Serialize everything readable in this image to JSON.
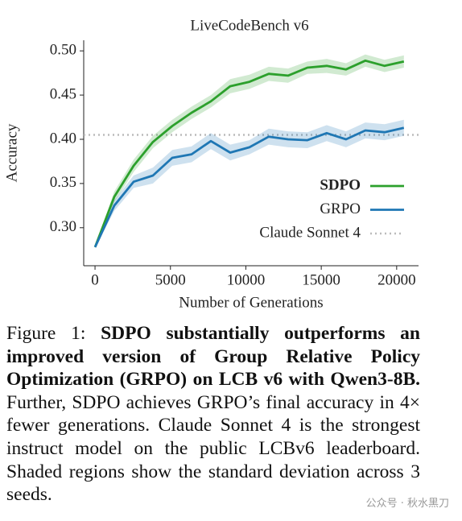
{
  "chart_data": {
    "type": "line",
    "title": "LiveCodeBench v6",
    "x_label": "Number of Generations",
    "y_label": "Accuracy",
    "x": [
      0,
      1280,
      2560,
      3840,
      5120,
      6400,
      7680,
      8960,
      10240,
      11520,
      12800,
      14080,
      15360,
      16640,
      17920,
      19200,
      20480
    ],
    "series": [
      {
        "name": "SDPO",
        "color": "#2ca02c",
        "values": [
          0.278,
          0.335,
          0.37,
          0.397,
          0.415,
          0.43,
          0.443,
          0.46,
          0.465,
          0.474,
          0.472,
          0.481,
          0.483,
          0.479,
          0.489,
          0.483,
          0.488
        ],
        "std": [
          0.001,
          0.006,
          0.007,
          0.007,
          0.007,
          0.007,
          0.007,
          0.008,
          0.008,
          0.008,
          0.008,
          0.007,
          0.008,
          0.007,
          0.007,
          0.007,
          0.007
        ]
      },
      {
        "name": "GRPO",
        "color": "#1f77b4",
        "values": [
          0.278,
          0.325,
          0.352,
          0.359,
          0.379,
          0.383,
          0.398,
          0.385,
          0.391,
          0.403,
          0.4,
          0.399,
          0.407,
          0.4,
          0.41,
          0.408,
          0.413
        ],
        "std": [
          0.001,
          0.006,
          0.007,
          0.009,
          0.009,
          0.009,
          0.009,
          0.009,
          0.008,
          0.009,
          0.009,
          0.009,
          0.009,
          0.009,
          0.009,
          0.009,
          0.009
        ]
      }
    ],
    "reference_line": {
      "name": "Claude Sonnet 4",
      "value": 0.405,
      "color": "#bbbbbb"
    },
    "xlim": [
      -750,
      21450
    ],
    "ylim": [
      0.257,
      0.512
    ],
    "xticks": [
      0,
      5000,
      10000,
      15000,
      20000
    ],
    "yticks": [
      {
        "value": 0.3,
        "label": "0.30"
      },
      {
        "value": 0.35,
        "label": "0.35"
      },
      {
        "value": 0.4,
        "label": "0.40"
      },
      {
        "value": 0.45,
        "label": "0.45"
      },
      {
        "value": 0.5,
        "label": "0.50"
      }
    ],
    "legend": "lower right"
  },
  "caption": {
    "label": "Figure 1:",
    "bold": "SDPO substantially outperforms an improved version of Group Relative Policy Optimization (GRPO) on LCB v6 with Qwen3-8B.",
    "text": "Further, SDPO achieves GRPO’s final accuracy in 4× fewer generations. Claude Sonnet 4 is the strongest instruct model on the public LCBv6 leaderboard.  Shaded regions show the standard deviation across 3 seeds."
  },
  "watermark": "公众号 · 秋水黑刀"
}
